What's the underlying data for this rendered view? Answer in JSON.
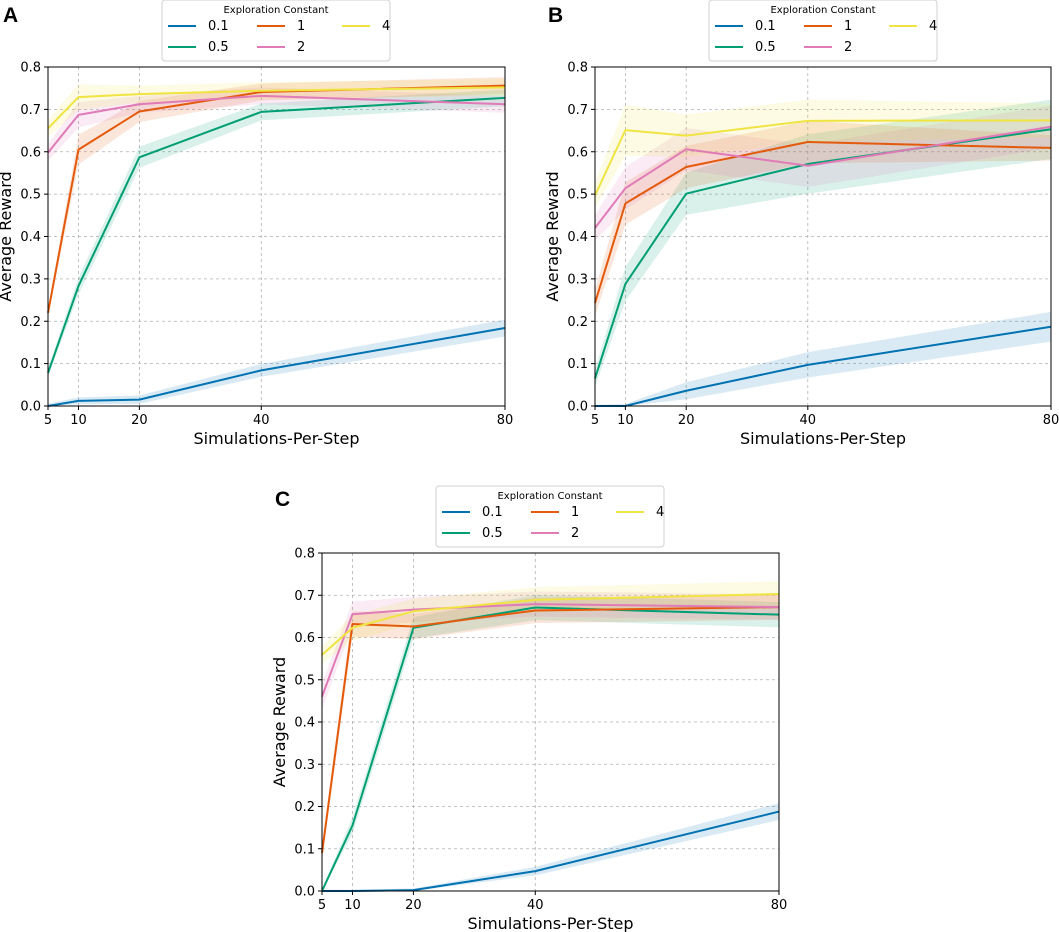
{
  "chart_data": [
    {
      "panel": "A",
      "type": "line",
      "title": "",
      "xlabel": "Simulations-Per-Step",
      "ylabel": "Average Reward",
      "x": [
        5,
        10,
        20,
        40,
        80
      ],
      "xticks": [
        "5",
        "10",
        "20",
        "40",
        "80"
      ],
      "xlim": [
        5,
        80
      ],
      "ylim": [
        0,
        0.8
      ],
      "yticks": [
        "0.0",
        "0.1",
        "0.2",
        "0.3",
        "0.4",
        "0.5",
        "0.6",
        "0.7",
        "0.8"
      ],
      "grid": true,
      "legend": {
        "title": "Exploration Constant",
        "placement": "top-center-outside"
      },
      "series": [
        {
          "name": "0.1",
          "color": "#0072B2",
          "values": [
            0.0,
            0.012,
            0.015,
            0.084,
            0.184
          ],
          "ci": [
            0.006,
            0.008,
            0.01,
            0.015,
            0.02
          ]
        },
        {
          "name": "0.5",
          "color": "#009E73",
          "values": [
            0.078,
            0.283,
            0.587,
            0.694,
            0.727
          ],
          "ci": [
            0.01,
            0.02,
            0.025,
            0.02,
            0.02
          ]
        },
        {
          "name": "1",
          "color": "#E45A0C",
          "values": [
            0.22,
            0.605,
            0.695,
            0.741,
            0.756
          ],
          "ci": [
            0.01,
            0.035,
            0.025,
            0.02,
            0.02
          ]
        },
        {
          "name": "2",
          "color": "#E07BB7",
          "values": [
            0.598,
            0.687,
            0.712,
            0.732,
            0.712
          ],
          "ci": [
            0.02,
            0.03,
            0.02,
            0.02,
            0.02
          ]
        },
        {
          "name": "4",
          "color": "#F0E442",
          "values": [
            0.655,
            0.729,
            0.736,
            0.744,
            0.752
          ],
          "ci": [
            0.02,
            0.03,
            0.02,
            0.02,
            0.02
          ]
        }
      ]
    },
    {
      "panel": "B",
      "type": "line",
      "title": "",
      "xlabel": "Simulations-Per-Step",
      "ylabel": "Average Reward",
      "x": [
        5,
        10,
        20,
        40,
        80
      ],
      "xticks": [
        "5",
        "10",
        "20",
        "40",
        "80"
      ],
      "xlim": [
        5,
        80
      ],
      "ylim": [
        0,
        0.8
      ],
      "yticks": [
        "0.0",
        "0.1",
        "0.2",
        "0.3",
        "0.4",
        "0.5",
        "0.6",
        "0.7",
        "0.8"
      ],
      "grid": true,
      "legend": {
        "title": "Exploration Constant",
        "placement": "top-center-outside"
      },
      "series": [
        {
          "name": "0.1",
          "color": "#0072B2",
          "values": [
            0.0,
            0.0,
            0.036,
            0.097,
            0.187
          ],
          "ci": [
            0.003,
            0.005,
            0.02,
            0.03,
            0.035
          ]
        },
        {
          "name": "0.5",
          "color": "#009E73",
          "values": [
            0.065,
            0.288,
            0.501,
            0.571,
            0.653
          ],
          "ci": [
            0.02,
            0.04,
            0.05,
            0.07,
            0.07
          ]
        },
        {
          "name": "1",
          "color": "#E45A0C",
          "values": [
            0.243,
            0.478,
            0.564,
            0.623,
            0.609
          ],
          "ci": [
            0.03,
            0.05,
            0.05,
            0.05,
            0.03
          ]
        },
        {
          "name": "2",
          "color": "#E07BB7",
          "values": [
            0.42,
            0.514,
            0.606,
            0.567,
            0.659
          ],
          "ci": [
            0.03,
            0.05,
            0.05,
            0.05,
            0.05
          ]
        },
        {
          "name": "4",
          "color": "#F0E442",
          "values": [
            0.497,
            0.651,
            0.638,
            0.673,
            0.674
          ],
          "ci": [
            0.03,
            0.06,
            0.05,
            0.05,
            0.04
          ]
        }
      ]
    },
    {
      "panel": "C",
      "type": "line",
      "title": "",
      "xlabel": "Simulations-Per-Step",
      "ylabel": "Average Reward",
      "x": [
        5,
        10,
        20,
        40,
        80
      ],
      "xticks": [
        "5",
        "10",
        "20",
        "40",
        "80"
      ],
      "xlim": [
        5,
        80
      ],
      "ylim": [
        0,
        0.8
      ],
      "yticks": [
        "0.0",
        "0.1",
        "0.2",
        "0.3",
        "0.4",
        "0.5",
        "0.6",
        "0.7",
        "0.8"
      ],
      "grid": true,
      "legend": {
        "title": "Exploration Constant",
        "placement": "top-center-outside"
      },
      "series": [
        {
          "name": "0.1",
          "color": "#0072B2",
          "values": [
            0.0,
            0.0,
            0.002,
            0.047,
            0.188
          ],
          "ci": [
            0.003,
            0.003,
            0.004,
            0.01,
            0.02
          ]
        },
        {
          "name": "0.5",
          "color": "#009E73",
          "values": [
            0.0,
            0.155,
            0.623,
            0.671,
            0.654
          ],
          "ci": [
            0.005,
            0.02,
            0.025,
            0.03,
            0.03
          ]
        },
        {
          "name": "1",
          "color": "#E45A0C",
          "values": [
            0.09,
            0.632,
            0.626,
            0.664,
            0.672
          ],
          "ci": [
            0.02,
            0.03,
            0.03,
            0.03,
            0.03
          ]
        },
        {
          "name": "2",
          "color": "#E07BB7",
          "values": [
            0.46,
            0.655,
            0.666,
            0.679,
            0.672
          ],
          "ci": [
            0.03,
            0.03,
            0.03,
            0.03,
            0.03
          ]
        },
        {
          "name": "4",
          "color": "#F0E442",
          "values": [
            0.559,
            0.623,
            0.662,
            0.689,
            0.703
          ],
          "ci": [
            0.02,
            0.03,
            0.03,
            0.03,
            0.03
          ]
        }
      ]
    }
  ]
}
